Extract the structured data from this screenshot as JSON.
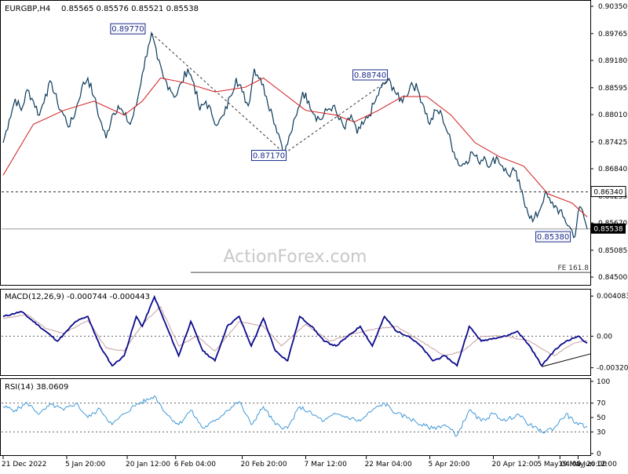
{
  "header": {
    "symbol": "EURGBP,H4",
    "ohlc": "0.85565 0.85576 0.85521 0.85538"
  },
  "watermark": "ActionForex.com",
  "colors": {
    "price": "#0b3a5a",
    "ma": "#d11a1a",
    "macd": "#0a0a8c",
    "signal": "#c8a0a0",
    "rsi": "#2d8fd4",
    "grid": "#333333",
    "axis": "#000000"
  },
  "chart_data": [
    {
      "type": "line",
      "name": "price-panel",
      "ylim": [
        0.8445,
        0.9035
      ],
      "y_ticks": [
        {
          "value": 0.9035,
          "label": "0.90350"
        },
        {
          "value": 0.8976,
          "label": "0.89765"
        },
        {
          "value": 0.8918,
          "label": "0.89180"
        },
        {
          "value": 0.8859,
          "label": "0.88595"
        },
        {
          "value": 0.8801,
          "label": "0.88010"
        },
        {
          "value": 0.8742,
          "label": "0.87425"
        },
        {
          "value": 0.8684,
          "label": "0.86840"
        },
        {
          "value": 0.8625,
          "label": "0.86255"
        },
        {
          "value": 0.8567,
          "label": "0.85670"
        },
        {
          "value": 0.8508,
          "label": "0.85085"
        },
        {
          "value": 0.845,
          "label": "0.84500"
        }
      ],
      "price_points": [
        [
          0,
          0.874
        ],
        [
          2,
          0.879
        ],
        [
          4,
          0.8835
        ],
        [
          6,
          0.881
        ],
        [
          8,
          0.8855
        ],
        [
          10,
          0.883
        ],
        [
          12,
          0.88
        ],
        [
          14,
          0.8845
        ],
        [
          16,
          0.887
        ],
        [
          18,
          0.8825
        ],
        [
          20,
          0.88
        ],
        [
          22,
          0.8775
        ],
        [
          24,
          0.881
        ],
        [
          26,
          0.886
        ],
        [
          28,
          0.888
        ],
        [
          30,
          0.884
        ],
        [
          32,
          0.879
        ],
        [
          34,
          0.875
        ],
        [
          36,
          0.88
        ],
        [
          38,
          0.882
        ],
        [
          40,
          0.88
        ],
        [
          42,
          0.878
        ],
        [
          44,
          0.882
        ],
        [
          46,
          0.889
        ],
        [
          48,
          0.895
        ],
        [
          49,
          0.8977
        ],
        [
          51,
          0.892
        ],
        [
          53,
          0.888
        ],
        [
          55,
          0.886
        ],
        [
          57,
          0.884
        ],
        [
          59,
          0.887
        ],
        [
          61,
          0.89
        ],
        [
          63,
          0.887
        ],
        [
          65,
          0.881
        ],
        [
          67,
          0.883
        ],
        [
          69,
          0.88
        ],
        [
          71,
          0.878
        ],
        [
          73,
          0.88
        ],
        [
          75,
          0.884
        ],
        [
          77,
          0.888
        ],
        [
          79,
          0.885
        ],
        [
          81,
          0.882
        ],
        [
          83,
          0.89
        ],
        [
          85,
          0.888
        ],
        [
          87,
          0.884
        ],
        [
          89,
          0.88
        ],
        [
          91,
          0.876
        ],
        [
          93,
          0.8717
        ],
        [
          95,
          0.876
        ],
        [
          97,
          0.88
        ],
        [
          99,
          0.885
        ],
        [
          101,
          0.883
        ],
        [
          103,
          0.88
        ],
        [
          105,
          0.879
        ],
        [
          107,
          0.881
        ],
        [
          109,
          0.882
        ],
        [
          111,
          0.879
        ],
        [
          113,
          0.877
        ],
        [
          115,
          0.88
        ],
        [
          117,
          0.876
        ],
        [
          119,
          0.878
        ],
        [
          121,
          0.88
        ],
        [
          123,
          0.883
        ],
        [
          125,
          0.886
        ],
        [
          127,
          0.8874
        ],
        [
          129,
          0.886
        ],
        [
          131,
          0.883
        ],
        [
          133,
          0.884
        ],
        [
          135,
          0.887
        ],
        [
          137,
          0.8855
        ],
        [
          139,
          0.882
        ],
        [
          141,
          0.878
        ],
        [
          143,
          0.881
        ],
        [
          145,
          0.88
        ],
        [
          147,
          0.876
        ],
        [
          149,
          0.872
        ],
        [
          151,
          0.869
        ],
        [
          153,
          0.87
        ],
        [
          155,
          0.872
        ],
        [
          157,
          0.87
        ],
        [
          159,
          0.871
        ],
        [
          161,
          0.869
        ],
        [
          163,
          0.871
        ],
        [
          165,
          0.869
        ],
        [
          167,
          0.867
        ],
        [
          169,
          0.868
        ],
        [
          171,
          0.864
        ],
        [
          173,
          0.86
        ],
        [
          175,
          0.857
        ],
        [
          177,
          0.859
        ],
        [
          179,
          0.863
        ],
        [
          181,
          0.861
        ],
        [
          183,
          0.86
        ],
        [
          185,
          0.858
        ],
        [
          187,
          0.856
        ],
        [
          189,
          0.8538
        ],
        [
          190,
          0.859
        ],
        [
          191,
          0.86
        ],
        [
          193,
          0.8554
        ]
      ],
      "ma_points": [
        [
          0,
          0.867
        ],
        [
          10,
          0.878
        ],
        [
          20,
          0.881
        ],
        [
          30,
          0.883
        ],
        [
          40,
          0.88
        ],
        [
          46,
          0.883
        ],
        [
          52,
          0.888
        ],
        [
          60,
          0.887
        ],
        [
          70,
          0.885
        ],
        [
          80,
          0.886
        ],
        [
          86,
          0.888
        ],
        [
          92,
          0.885
        ],
        [
          100,
          0.881
        ],
        [
          110,
          0.88
        ],
        [
          116,
          0.8785
        ],
        [
          124,
          0.881
        ],
        [
          132,
          0.884
        ],
        [
          140,
          0.884
        ],
        [
          148,
          0.88
        ],
        [
          156,
          0.874
        ],
        [
          164,
          0.871
        ],
        [
          172,
          0.869
        ],
        [
          180,
          0.863
        ],
        [
          188,
          0.861
        ],
        [
          193,
          0.858
        ]
      ],
      "levels": [
        {
          "name": "support-0.86340",
          "value": 0.8634,
          "style": "dashed"
        },
        {
          "name": "current-0.85538",
          "value": 0.8554,
          "style": "solid-gray"
        }
      ],
      "annotations": [
        {
          "label": "0.89770",
          "index": 49,
          "value": 0.8977
        },
        {
          "label": "0.87170",
          "index": 93,
          "value": 0.8717
        },
        {
          "label": "0.88740",
          "index": 127,
          "value": 0.8874
        },
        {
          "label": "0.85380",
          "index": 189,
          "value": 0.8538
        }
      ],
      "current_label": "0.85538",
      "level_label": "0.86340",
      "fe_label": "FE 161.8",
      "fe_value": 0.846
    },
    {
      "type": "line",
      "name": "macd-panel",
      "title": "MACD(12,26,9) -0.000744 -0.000443",
      "ylim": [
        -0.0038,
        0.0045
      ],
      "y_ticks": [
        {
          "value": 0.004083,
          "label": "0.004083"
        },
        {
          "value": 0.0,
          "label": "0.00"
        },
        {
          "value": -0.003209,
          "label": "-0.003209"
        }
      ],
      "macd_points": [
        [
          0,
          0.002
        ],
        [
          6,
          0.0025
        ],
        [
          12,
          0.001
        ],
        [
          18,
          -0.0005
        ],
        [
          24,
          0.0015
        ],
        [
          28,
          0.002
        ],
        [
          32,
          -0.001
        ],
        [
          36,
          -0.003
        ],
        [
          40,
          -0.002
        ],
        [
          44,
          0.002
        ],
        [
          46,
          0.001
        ],
        [
          50,
          0.004
        ],
        [
          54,
          0.001
        ],
        [
          58,
          -0.002
        ],
        [
          62,
          0.0015
        ],
        [
          66,
          -0.0015
        ],
        [
          70,
          -0.0025
        ],
        [
          74,
          0.001
        ],
        [
          78,
          0.002
        ],
        [
          82,
          -0.001
        ],
        [
          86,
          0.0018
        ],
        [
          90,
          -0.0015
        ],
        [
          94,
          -0.0025
        ],
        [
          98,
          0.002
        ],
        [
          102,
          0.001
        ],
        [
          106,
          -0.0005
        ],
        [
          110,
          -0.001
        ],
        [
          114,
          0.0
        ],
        [
          118,
          0.001
        ],
        [
          122,
          -0.001
        ],
        [
          126,
          0.002
        ],
        [
          130,
          0.0005
        ],
        [
          134,
          0.0
        ],
        [
          138,
          -0.001
        ],
        [
          142,
          -0.0025
        ],
        [
          146,
          -0.002
        ],
        [
          150,
          -0.003
        ],
        [
          154,
          0.001
        ],
        [
          158,
          -0.0005
        ],
        [
          162,
          -0.0002
        ],
        [
          166,
          0.0
        ],
        [
          170,
          0.0005
        ],
        [
          174,
          -0.001
        ],
        [
          178,
          -0.003
        ],
        [
          182,
          -0.0015
        ],
        [
          186,
          -0.0005
        ],
        [
          190,
          0.0
        ],
        [
          193,
          -0.0007
        ]
      ],
      "signal_points": [
        [
          0,
          0.0018
        ],
        [
          8,
          0.0022
        ],
        [
          14,
          0.0008
        ],
        [
          20,
          0.0003
        ],
        [
          28,
          0.0016
        ],
        [
          34,
          -0.0012
        ],
        [
          40,
          -0.0015
        ],
        [
          46,
          0.0012
        ],
        [
          52,
          0.003
        ],
        [
          58,
          -0.001
        ],
        [
          64,
          0.0
        ],
        [
          70,
          -0.0015
        ],
        [
          78,
          0.0015
        ],
        [
          86,
          0.001
        ],
        [
          92,
          -0.001
        ],
        [
          100,
          0.0012
        ],
        [
          108,
          -0.0005
        ],
        [
          116,
          0.0003
        ],
        [
          124,
          0.0008
        ],
        [
          130,
          0.001
        ],
        [
          138,
          -0.0005
        ],
        [
          146,
          -0.002
        ],
        [
          152,
          -0.0015
        ],
        [
          158,
          0.0
        ],
        [
          166,
          0.0
        ],
        [
          174,
          -0.0005
        ],
        [
          182,
          -0.002
        ],
        [
          188,
          -0.0008
        ],
        [
          193,
          -0.0004
        ]
      ]
    },
    {
      "type": "line",
      "name": "rsi-panel",
      "title": "RSI(14) 38.0609",
      "ylim": [
        0,
        100
      ],
      "y_ticks": [
        {
          "value": 100,
          "label": "100"
        },
        {
          "value": 70,
          "label": "70"
        },
        {
          "value": 50,
          "label": "50"
        },
        {
          "value": 30,
          "label": "30"
        },
        {
          "value": 0,
          "label": "0"
        }
      ],
      "rsi_points": [
        [
          0,
          65
        ],
        [
          4,
          60
        ],
        [
          8,
          70
        ],
        [
          12,
          55
        ],
        [
          16,
          68
        ],
        [
          20,
          60
        ],
        [
          24,
          70
        ],
        [
          28,
          50
        ],
        [
          32,
          62
        ],
        [
          36,
          40
        ],
        [
          40,
          55
        ],
        [
          44,
          68
        ],
        [
          48,
          75
        ],
        [
          50,
          80
        ],
        [
          54,
          55
        ],
        [
          58,
          40
        ],
        [
          62,
          60
        ],
        [
          66,
          35
        ],
        [
          70,
          45
        ],
        [
          74,
          60
        ],
        [
          78,
          72
        ],
        [
          82,
          40
        ],
        [
          86,
          65
        ],
        [
          90,
          40
        ],
        [
          94,
          35
        ],
        [
          98,
          65
        ],
        [
          102,
          55
        ],
        [
          106,
          45
        ],
        [
          110,
          55
        ],
        [
          114,
          50
        ],
        [
          118,
          45
        ],
        [
          122,
          60
        ],
        [
          126,
          70
        ],
        [
          130,
          55
        ],
        [
          134,
          50
        ],
        [
          138,
          40
        ],
        [
          142,
          35
        ],
        [
          146,
          40
        ],
        [
          150,
          25
        ],
        [
          154,
          60
        ],
        [
          158,
          45
        ],
        [
          162,
          55
        ],
        [
          166,
          45
        ],
        [
          170,
          55
        ],
        [
          174,
          40
        ],
        [
          178,
          30
        ],
        [
          182,
          35
        ],
        [
          186,
          55
        ],
        [
          190,
          40
        ],
        [
          193,
          38
        ]
      ]
    }
  ],
  "x_axis": {
    "total_points": 194,
    "labels": [
      {
        "index": 0,
        "label": "21 Dec 2022"
      },
      {
        "index": 21,
        "label": "5 Jan 20:00"
      },
      {
        "index": 41,
        "label": "20 Jan 12:00"
      },
      {
        "index": 57,
        "label": "6 Feb 04:00"
      },
      {
        "index": 79,
        "label": "20 Feb 20:00"
      },
      {
        "index": 100,
        "label": "7 Mar 12:00"
      },
      {
        "index": 120,
        "label": "22 Mar 04:00"
      },
      {
        "index": 141,
        "label": "5 Apr 20:00"
      },
      {
        "index": 162,
        "label": "20 Apr 12:00"
      },
      {
        "index": 177,
        "label": "5 May 04:00"
      },
      {
        "index": 184,
        "label": "19 May 20:00"
      },
      {
        "index": 190,
        "label": "5 Jun 12:00"
      }
    ]
  }
}
